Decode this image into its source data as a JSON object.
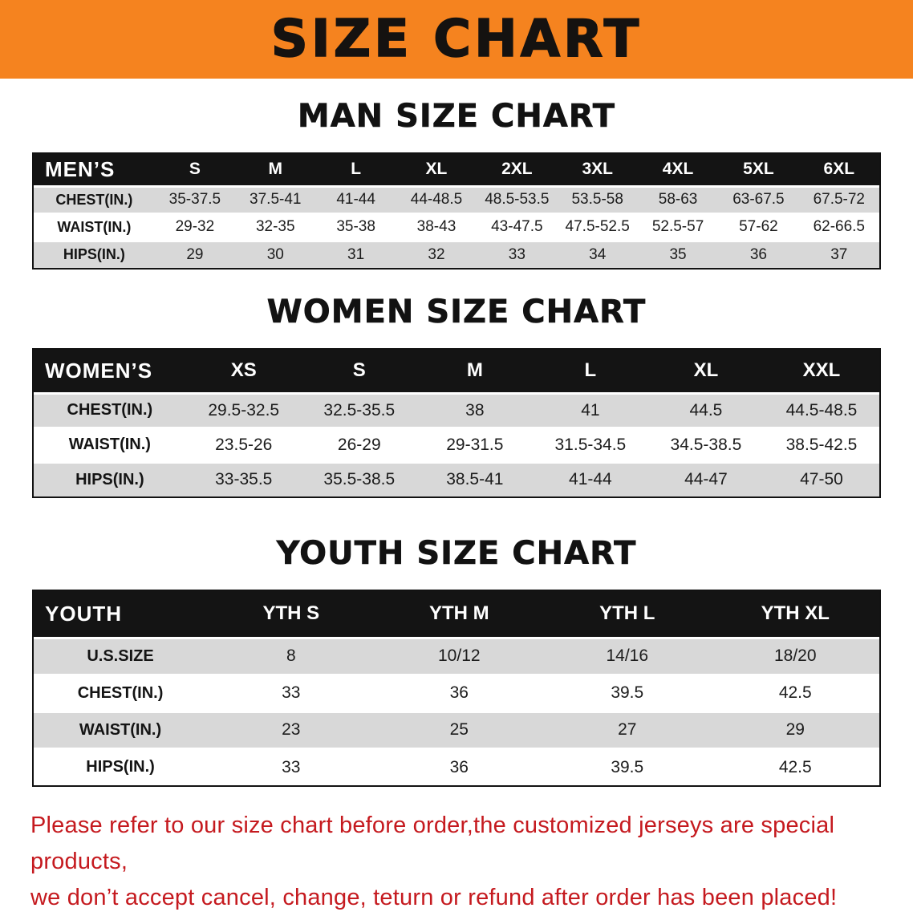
{
  "banner": {
    "title": "SIZE CHART",
    "background_color": "#f5831f"
  },
  "sections": [
    {
      "key": "mens",
      "heading": "MAN SIZE CHART",
      "table": {
        "header": [
          "MEN’S",
          "S",
          "M",
          "L",
          "XL",
          "2XL",
          "3XL",
          "4XL",
          "5XL",
          "6XL"
        ],
        "rows": [
          [
            "CHEST(IN.)",
            "35-37.5",
            "37.5-41",
            "41-44",
            "44-48.5",
            "48.5-53.5",
            "53.5-58",
            "58-63",
            "63-67.5",
            "67.5-72"
          ],
          [
            "WAIST(IN.)",
            "29-32",
            "32-35",
            "35-38",
            "38-43",
            "43-47.5",
            "47.5-52.5",
            "52.5-57",
            "57-62",
            "62-66.5"
          ],
          [
            "HIPS(IN.)",
            "29",
            "30",
            "31",
            "32",
            "33",
            "34",
            "35",
            "36",
            "37"
          ]
        ]
      }
    },
    {
      "key": "womens",
      "heading": "WOMEN SIZE CHART",
      "table": {
        "header": [
          "WOMEN’S",
          "XS",
          "S",
          "M",
          "L",
          "XL",
          "XXL"
        ],
        "rows": [
          [
            "CHEST(IN.)",
            "29.5-32.5",
            "32.5-35.5",
            "38",
            "41",
            "44.5",
            "44.5-48.5"
          ],
          [
            "WAIST(IN.)",
            "23.5-26",
            "26-29",
            "29-31.5",
            "31.5-34.5",
            "34.5-38.5",
            "38.5-42.5"
          ],
          [
            "HIPS(IN.)",
            "33-35.5",
            "35.5-38.5",
            "38.5-41",
            "41-44",
            "44-47",
            "47-50"
          ]
        ]
      }
    },
    {
      "key": "youth",
      "heading": "YOUTH SIZE CHART",
      "table": {
        "header": [
          "YOUTH",
          "YTH S",
          "YTH M",
          "YTH L",
          "YTH XL"
        ],
        "rows": [
          [
            "U.S.SIZE",
            "8",
            "10/12",
            "14/16",
            "18/20"
          ],
          [
            "CHEST(IN.)",
            "33",
            "36",
            "39.5",
            "42.5"
          ],
          [
            "WAIST(IN.)",
            "23",
            "25",
            "27",
            "29"
          ],
          [
            "HIPS(IN.)",
            "33",
            "36",
            "39.5",
            "42.5"
          ]
        ]
      }
    }
  ],
  "footer": {
    "line1": "Please refer to our size chart before order,the customized jerseys are special products,",
    "line2": "we don’t accept cancel, change, teturn or refund after order has been placed!",
    "text_color": "#c51a1f"
  }
}
